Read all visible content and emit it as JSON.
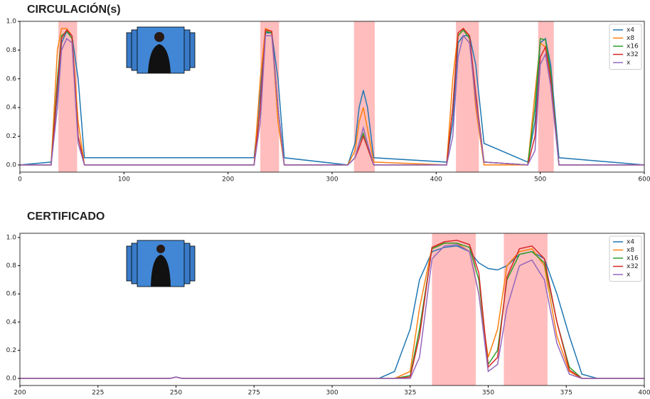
{
  "chart_data": [
    {
      "type": "line",
      "title": "CIRCULACIÓN(s)",
      "x": [
        0,
        30,
        36,
        40,
        45,
        50,
        56,
        62,
        225,
        231,
        236,
        242,
        248,
        254,
        315,
        322,
        326,
        330,
        334,
        340,
        410,
        416,
        421,
        426,
        432,
        438,
        446,
        488,
        495,
        500,
        505,
        510,
        518,
        600
      ],
      "series": [
        {
          "name": "x4",
          "color": "#1f77b4",
          "values": [
            0,
            0.02,
            0.5,
            0.85,
            0.93,
            0.9,
            0.6,
            0.05,
            0.05,
            0.5,
            0.92,
            0.92,
            0.6,
            0.05,
            0,
            0.15,
            0.4,
            0.52,
            0.4,
            0.05,
            0.02,
            0.3,
            0.85,
            0.9,
            0.9,
            0.7,
            0.15,
            0.02,
            0.3,
            0.85,
            0.88,
            0.7,
            0.05,
            0
          ]
        },
        {
          "name": "x8",
          "color": "#ff7f0e",
          "values": [
            0,
            0,
            0.8,
            0.95,
            0.95,
            0.9,
            0.3,
            0,
            0,
            0.6,
            0.95,
            0.93,
            0.3,
            0,
            0,
            0.1,
            0.3,
            0.4,
            0.25,
            0.02,
            0,
            0.6,
            0.92,
            0.95,
            0.9,
            0.4,
            0,
            0,
            0.5,
            0.85,
            0.82,
            0.6,
            0,
            0
          ]
        },
        {
          "name": "x16",
          "color": "#2ca02c",
          "values": [
            0,
            0,
            0.6,
            0.9,
            0.93,
            0.88,
            0.2,
            0,
            0,
            0.4,
            0.93,
            0.92,
            0.4,
            0,
            0,
            0.05,
            0.15,
            0.22,
            0.12,
            0,
            0,
            0.4,
            0.9,
            0.94,
            0.88,
            0.5,
            0.02,
            0,
            0.4,
            0.88,
            0.87,
            0.65,
            0,
            0
          ]
        },
        {
          "name": "x32",
          "color": "#d62728",
          "values": [
            0,
            0,
            0.55,
            0.88,
            0.94,
            0.9,
            0.2,
            0,
            0,
            0.4,
            0.94,
            0.93,
            0.4,
            0,
            0,
            0.05,
            0.12,
            0.2,
            0.12,
            0,
            0,
            0.4,
            0.92,
            0.95,
            0.9,
            0.5,
            0.02,
            0,
            0.2,
            0.75,
            0.82,
            0.6,
            0,
            0
          ]
        },
        {
          "name": "x",
          "color": "#9467bd",
          "values": [
            0,
            0,
            0.4,
            0.8,
            0.88,
            0.85,
            0.15,
            0,
            0,
            0.3,
            0.9,
            0.9,
            0.4,
            0,
            0,
            0.05,
            0.15,
            0.26,
            0.15,
            0,
            0,
            0.2,
            0.75,
            0.9,
            0.85,
            0.45,
            0.02,
            0,
            0.1,
            0.7,
            0.77,
            0.55,
            0,
            0
          ]
        }
      ],
      "spans": [
        [
          37,
          55
        ],
        [
          231,
          249
        ],
        [
          321,
          341
        ],
        [
          419,
          441
        ],
        [
          498,
          513
        ]
      ],
      "span_color": "#ff9999",
      "xlim": [
        0,
        600
      ],
      "xticks": [
        0,
        100,
        200,
        300,
        400,
        500,
        600
      ],
      "ylim": [
        -0.05,
        1.0
      ],
      "yticks": [
        {
          "value": 0,
          "label": "0.0"
        },
        0.2,
        0.4,
        0.6,
        0.8,
        {
          "value": 1,
          "label": "1.0"
        }
      ],
      "legend": "upper right"
    },
    {
      "type": "line",
      "title": "CERTIFICADO",
      "x": [
        200,
        248,
        250,
        252,
        300,
        315,
        320,
        325,
        328,
        332,
        336,
        340,
        344,
        347,
        350,
        353,
        356,
        360,
        364,
        368,
        372,
        376,
        380,
        385,
        400
      ],
      "series": [
        {
          "name": "x4",
          "color": "#1f77b4",
          "values": [
            0,
            0,
            0.01,
            0,
            0,
            0,
            0.05,
            0.35,
            0.7,
            0.9,
            0.93,
            0.94,
            0.9,
            0.82,
            0.78,
            0.77,
            0.8,
            0.88,
            0.9,
            0.85,
            0.6,
            0.3,
            0.03,
            0,
            0
          ]
        },
        {
          "name": "x8",
          "color": "#ff7f0e",
          "values": [
            0,
            0,
            0.01,
            0,
            0,
            0,
            0,
            0.05,
            0.5,
            0.93,
            0.96,
            0.96,
            0.9,
            0.6,
            0.15,
            0.35,
            0.8,
            0.9,
            0.92,
            0.8,
            0.3,
            0.05,
            0,
            0,
            0
          ]
        },
        {
          "name": "x16",
          "color": "#2ca02c",
          "values": [
            0,
            0,
            0.01,
            0,
            0,
            0,
            0,
            0.02,
            0.35,
            0.92,
            0.96,
            0.96,
            0.93,
            0.7,
            0.1,
            0.2,
            0.7,
            0.88,
            0.9,
            0.82,
            0.4,
            0.08,
            0,
            0,
            0
          ]
        },
        {
          "name": "x32",
          "color": "#d62728",
          "values": [
            0,
            0,
            0.01,
            0,
            0,
            0,
            0,
            0.01,
            0.3,
            0.93,
            0.97,
            0.98,
            0.95,
            0.75,
            0.08,
            0.15,
            0.72,
            0.92,
            0.94,
            0.85,
            0.4,
            0.06,
            0,
            0,
            0
          ]
        },
        {
          "name": "x",
          "color": "#9467bd",
          "values": [
            0,
            0,
            0.01,
            0,
            0,
            0,
            0,
            0,
            0.15,
            0.85,
            0.94,
            0.95,
            0.9,
            0.6,
            0.05,
            0.1,
            0.5,
            0.8,
            0.84,
            0.7,
            0.25,
            0.03,
            0,
            0,
            0
          ]
        }
      ],
      "spans": [
        [
          332,
          346
        ],
        [
          355,
          369
        ]
      ],
      "span_color": "#ff9999",
      "xlim": [
        200,
        400
      ],
      "xticks": [
        200,
        225,
        250,
        275,
        300,
        325,
        350,
        375,
        400
      ],
      "ylim": [
        -0.05,
        1.03
      ],
      "yticks": [
        {
          "value": 0,
          "label": "0.0"
        },
        0.2,
        0.4,
        0.6,
        0.8,
        {
          "value": 1,
          "label": "1.0"
        }
      ],
      "legend": "upper right"
    }
  ]
}
